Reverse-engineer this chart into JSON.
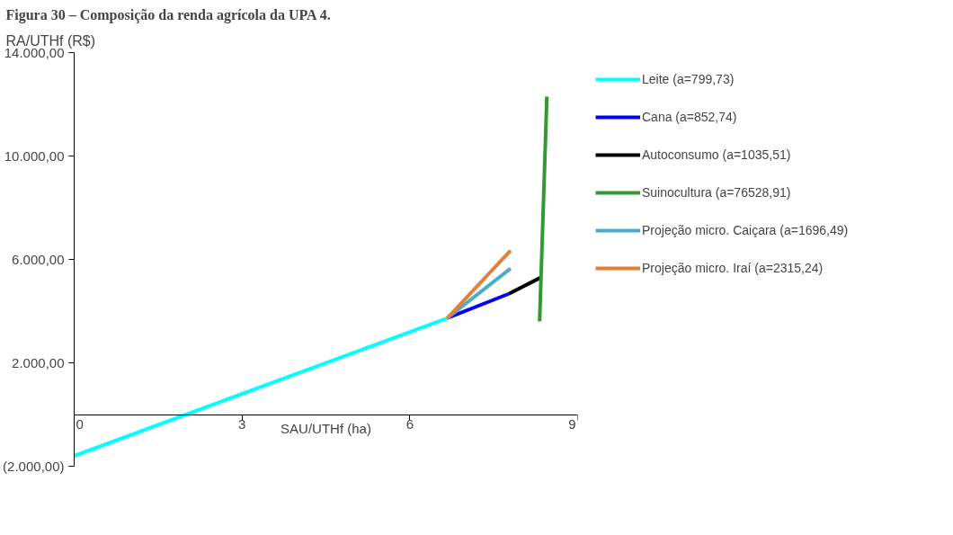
{
  "chart_data": {
    "type": "line",
    "title": "Figura 30 – Composição da renda agrícola da UPA 4.",
    "xlabel": "SAU/UTHf (ha)",
    "ylabel": "RA/UTHf (R$)",
    "xlim": [
      0,
      9
    ],
    "ylim": [
      -2000,
      14000
    ],
    "xticks": [
      0,
      3,
      6,
      9
    ],
    "yticks": [
      {
        "value": -2000,
        "label": "(2.000,00)"
      },
      {
        "value": 2000,
        "label": "2.000,00"
      },
      {
        "value": 6000,
        "label": "6.000,00"
      },
      {
        "value": 10000,
        "label": "10.000,00"
      },
      {
        "value": 14000,
        "label": "14.000,00"
      }
    ],
    "grid": false,
    "legend": "right",
    "marker": "none",
    "line_style": "solid",
    "series": [
      {
        "name": "Leite (a=799,73)",
        "color": "#00ffff",
        "x": [
          0,
          6.67
        ],
        "values": [
          -1600,
          3730
        ]
      },
      {
        "name": "Cana (a=852,74)",
        "color": "#0000ff",
        "x": [
          6.67,
          7.77
        ],
        "values": [
          3730,
          4670
        ]
      },
      {
        "name": "Autoconsumo (a=1035,51)",
        "color": "#000000",
        "x": [
          7.77,
          8.34
        ],
        "values": [
          4670,
          5300
        ]
      },
      {
        "name": "Suinocultura (a=76528,91)",
        "color": "#339933",
        "x": [
          8.32,
          8.45
        ],
        "values": [
          3600,
          12300
        ]
      },
      {
        "name": "Projeção micro. Caiçara (a=1696,49)",
        "color": "#4bacc6",
        "x": [
          6.67,
          7.8
        ],
        "values": [
          3730,
          5650
        ]
      },
      {
        "name": "Projeção micro. Iraí (a=2315,24)",
        "color": "#e0803a",
        "x": [
          6.67,
          7.8
        ],
        "values": [
          3730,
          6340
        ]
      }
    ]
  }
}
